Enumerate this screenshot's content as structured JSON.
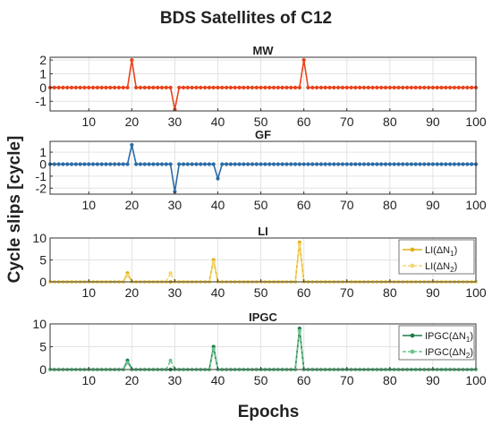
{
  "figure": {
    "title": "BDS Satellites of C12",
    "xlabel": "Epochs",
    "ylabel": "Cycle slips [cycle]"
  },
  "chart_data": [
    {
      "type": "line",
      "title": "MW",
      "xlim": [
        1,
        100
      ],
      "ylim": [
        -1.7,
        2.2
      ],
      "xticks": [
        10,
        20,
        30,
        40,
        50,
        60,
        70,
        80,
        90,
        100
      ],
      "yticks": [
        -1,
        0,
        1,
        2
      ],
      "grid": true,
      "legend": null,
      "series": [
        {
          "name": "",
          "color": "#e8431b",
          "x_range": [
            1,
            100
          ],
          "baseline": 0,
          "spikes": [
            [
              20,
              2
            ],
            [
              30,
              -1.6
            ],
            [
              60,
              2
            ]
          ]
        }
      ]
    },
    {
      "type": "line",
      "title": "GF",
      "xlim": [
        1,
        100
      ],
      "ylim": [
        -2.5,
        1.9
      ],
      "xticks": [
        10,
        20,
        30,
        40,
        50,
        60,
        70,
        80,
        90,
        100
      ],
      "yticks": [
        -2,
        -1,
        0,
        1
      ],
      "grid": true,
      "legend": null,
      "series": [
        {
          "name": "",
          "color": "#2a6ba6",
          "x_range": [
            1,
            100
          ],
          "baseline": 0,
          "spikes": [
            [
              20,
              1.6
            ],
            [
              30,
              -2.3
            ],
            [
              40,
              -1.2
            ]
          ]
        }
      ]
    },
    {
      "type": "line",
      "title": "LI",
      "xlim": [
        1,
        100
      ],
      "ylim": [
        0,
        10
      ],
      "xticks": [
        10,
        20,
        30,
        40,
        50,
        60,
        70,
        80,
        90,
        100
      ],
      "yticks": [
        0,
        5,
        10
      ],
      "grid": true,
      "legend": "top-right",
      "series": [
        {
          "name": "LI(ΔN1)",
          "label_main": "LI(ΔN",
          "label_sub": "1",
          "label_end": ")",
          "color": "#e2b018",
          "dashed": false,
          "x_range": [
            1,
            100
          ],
          "baseline": 0,
          "spikes": [
            [
              19,
              2
            ],
            [
              39,
              5
            ],
            [
              59,
              9
            ]
          ]
        },
        {
          "name": "LI(ΔN2)",
          "label_main": "LI(ΔN",
          "label_sub": "2",
          "label_end": ")",
          "color": "#f5d76e",
          "dashed": true,
          "x_range": [
            1,
            100
          ],
          "baseline": 0,
          "spikes": [
            [
              19,
              1.5
            ],
            [
              29,
              2
            ],
            [
              39,
              4.5
            ],
            [
              59,
              8.5
            ]
          ]
        }
      ]
    },
    {
      "type": "line",
      "title": "IPGC",
      "xlim": [
        1,
        100
      ],
      "ylim": [
        0,
        10
      ],
      "xticks": [
        10,
        20,
        30,
        40,
        50,
        60,
        70,
        80,
        90,
        100
      ],
      "yticks": [
        0,
        5,
        10
      ],
      "grid": true,
      "legend": "top-right",
      "series": [
        {
          "name": "IPGC(ΔN1)",
          "label_main": "IPGC(ΔN",
          "label_sub": "1",
          "label_end": ")",
          "color": "#1e7a48",
          "dashed": false,
          "x_range": [
            1,
            100
          ],
          "baseline": 0,
          "spikes": [
            [
              19,
              2
            ],
            [
              39,
              5
            ],
            [
              59,
              9
            ]
          ]
        },
        {
          "name": "IPGC(ΔN2)",
          "label_main": "IPGC(ΔN",
          "label_sub": "2",
          "label_end": ")",
          "color": "#6cc58e",
          "dashed": true,
          "x_range": [
            1,
            100
          ],
          "baseline": 0,
          "spikes": [
            [
              19,
              1.5
            ],
            [
              29,
              2
            ],
            [
              39,
              4.5
            ],
            [
              59,
              8.5
            ]
          ]
        }
      ]
    }
  ]
}
